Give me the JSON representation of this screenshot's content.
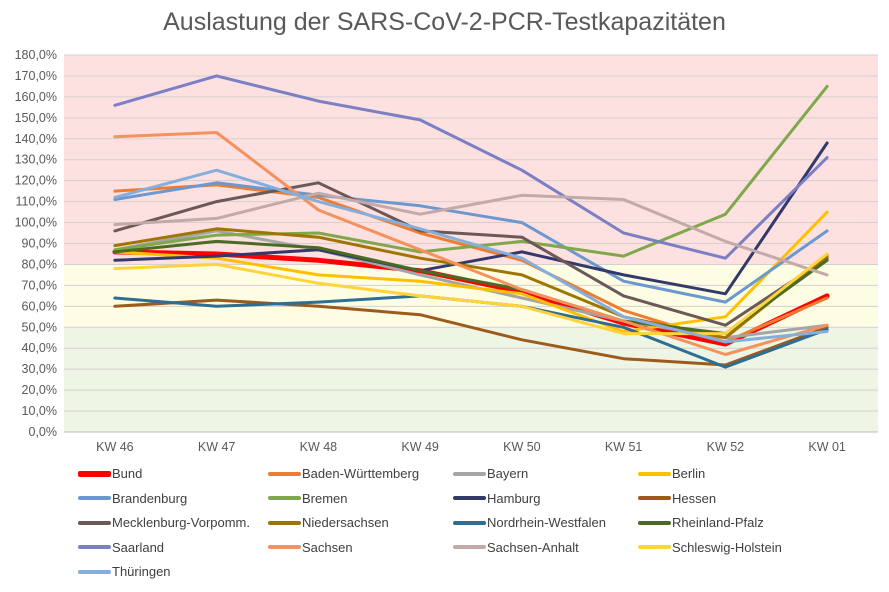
{
  "chart_data": {
    "type": "line",
    "title": "Auslastung der SARS-CoV-2-PCR-Testkapazitäten",
    "xlabel": "",
    "ylabel": "",
    "categories": [
      "KW 46",
      "KW 47",
      "KW 48",
      "KW 49",
      "KW 50",
      "KW 51",
      "KW 52",
      "KW 01"
    ],
    "ylim": [
      0,
      180
    ],
    "yticks": [
      "0,0%",
      "10,0%",
      "20,0%",
      "30,0%",
      "40,0%",
      "50,0%",
      "60,0%",
      "70,0%",
      "80,0%",
      "90,0%",
      "100,0%",
      "110,0%",
      "120,0%",
      "130,0%",
      "140,0%",
      "150,0%",
      "160,0%",
      "170,0%",
      "180,0%"
    ],
    "grid": true,
    "legend_position": "bottom",
    "bands": [
      {
        "from": 80,
        "to": 180,
        "color": "#FDE0E0"
      },
      {
        "from": 50,
        "to": 80,
        "color": "#FDFDE4"
      },
      {
        "from": 0,
        "to": 50,
        "color": "#EEF5E5"
      }
    ],
    "series": [
      {
        "name": "Bund",
        "color": "#FF0000",
        "width": 5,
        "values": [
          86,
          85,
          82,
          77,
          67,
          52,
          42,
          65
        ]
      },
      {
        "name": "Baden-Württemberg",
        "color": "#ED7D31",
        "width": 3,
        "values": [
          115,
          118,
          112,
          95,
          82,
          58,
          43,
          64
        ]
      },
      {
        "name": "Bayern",
        "color": "#A5A5A5",
        "width": 3,
        "values": [
          87,
          96,
          87,
          75,
          64,
          53,
          45,
          51
        ]
      },
      {
        "name": "Berlin",
        "color": "#FFC000",
        "width": 3,
        "values": [
          86,
          83,
          75,
          72,
          66,
          48,
          55,
          105
        ]
      },
      {
        "name": "Brandenburg",
        "color": "#6A98CF",
        "width": 3,
        "values": [
          111,
          119,
          113,
          108,
          100,
          72,
          62,
          96
        ]
      },
      {
        "name": "Bremen",
        "color": "#7FA84B",
        "width": 3,
        "values": [
          87,
          94,
          95,
          86,
          91,
          84,
          104,
          165
        ]
      },
      {
        "name": "Hamburg",
        "color": "#333A6B",
        "width": 3,
        "values": [
          82,
          84,
          87,
          77,
          86,
          75,
          66,
          138
        ]
      },
      {
        "name": "Hessen",
        "color": "#9C5A1C",
        "width": 3,
        "values": [
          60,
          63,
          60,
          56,
          44,
          35,
          32,
          50
        ]
      },
      {
        "name": "Mecklenburg-Vorpomm.",
        "color": "#6B5858",
        "width": 3,
        "values": [
          96,
          110,
          119,
          96,
          93,
          65,
          51,
          83
        ]
      },
      {
        "name": "Niedersachsen",
        "color": "#A07400",
        "width": 3,
        "values": [
          89,
          97,
          93,
          83,
          75,
          55,
          45,
          84
        ]
      },
      {
        "name": "Nordrhein-Westfalen",
        "color": "#2D6E92",
        "width": 3,
        "values": [
          64,
          60,
          62,
          65,
          60,
          50,
          31,
          49
        ]
      },
      {
        "name": "Rheinland-Pfalz",
        "color": "#4A6B23",
        "width": 3,
        "values": [
          86,
          91,
          88,
          77,
          68,
          53,
          47,
          82
        ]
      },
      {
        "name": "Saarland",
        "color": "#7B7FC4",
        "width": 3,
        "values": [
          156,
          170,
          158,
          149,
          125,
          95,
          83,
          131
        ]
      },
      {
        "name": "Sachsen",
        "color": "#F4915C",
        "width": 3,
        "values": [
          141,
          143,
          106,
          87,
          68,
          53,
          37,
          51
        ]
      },
      {
        "name": "Sachsen-Anhalt",
        "color": "#C4A9A9",
        "width": 3,
        "values": [
          99,
          102,
          114,
          104,
          113,
          111,
          91,
          75
        ]
      },
      {
        "name": "Schleswig-Holstein",
        "color": "#FFD43B",
        "width": 3,
        "values": [
          78,
          80,
          71,
          65,
          60,
          47,
          47,
          85
        ]
      },
      {
        "name": "Thüringen",
        "color": "#86AEDC",
        "width": 3,
        "values": [
          112,
          125,
          110,
          97,
          83,
          55,
          43,
          48
        ]
      }
    ]
  }
}
